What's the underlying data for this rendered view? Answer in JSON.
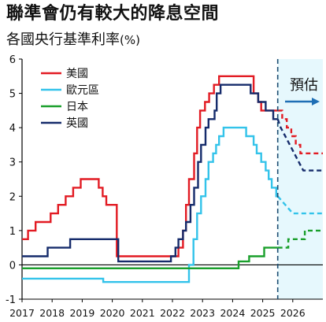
{
  "title": "聯準會仍有較大的降息空間",
  "subtitle": "各國央行基準利率",
  "subtitle_unit": "(%)",
  "forecast_label": "預估",
  "chart_data": {
    "type": "line",
    "title": "聯準會仍有較大的降息空間",
    "ylabel": "各國央行基準利率(%)",
    "xlim": [
      2017.0,
      2027.0
    ],
    "ylim": [
      -1,
      6
    ],
    "x_ticks": [
      "2017",
      "2018",
      "2019",
      "2020",
      "2021",
      "2022",
      "2023",
      "2024",
      "2025",
      "2026"
    ],
    "y_ticks": [
      "-1",
      "0",
      "1",
      "2",
      "3",
      "4",
      "5",
      "6"
    ],
    "forecast_start": 2025.5,
    "legend_position": "top-left",
    "grid": false,
    "series": [
      {
        "name": "美國",
        "color": "#e21b23",
        "points": [
          [
            2017.0,
            0.75
          ],
          [
            2017.2,
            0.75
          ],
          [
            2017.2,
            1.0
          ],
          [
            2017.45,
            1.0
          ],
          [
            2017.45,
            1.25
          ],
          [
            2017.95,
            1.25
          ],
          [
            2017.95,
            1.5
          ],
          [
            2018.2,
            1.5
          ],
          [
            2018.2,
            1.75
          ],
          [
            2018.45,
            1.75
          ],
          [
            2018.45,
            2.0
          ],
          [
            2018.7,
            2.0
          ],
          [
            2018.7,
            2.25
          ],
          [
            2018.95,
            2.25
          ],
          [
            2018.95,
            2.5
          ],
          [
            2019.55,
            2.5
          ],
          [
            2019.55,
            2.25
          ],
          [
            2019.68,
            2.25
          ],
          [
            2019.68,
            2.0
          ],
          [
            2019.8,
            2.0
          ],
          [
            2019.8,
            1.75
          ],
          [
            2020.15,
            1.75
          ],
          [
            2020.15,
            0.25
          ],
          [
            2022.2,
            0.25
          ],
          [
            2022.2,
            0.5
          ],
          [
            2022.35,
            0.5
          ],
          [
            2022.35,
            1.0
          ],
          [
            2022.45,
            1.0
          ],
          [
            2022.45,
            1.75
          ],
          [
            2022.55,
            1.75
          ],
          [
            2022.55,
            2.5
          ],
          [
            2022.72,
            2.5
          ],
          [
            2022.72,
            3.25
          ],
          [
            2022.82,
            3.25
          ],
          [
            2022.82,
            4.0
          ],
          [
            2022.92,
            4.0
          ],
          [
            2022.92,
            4.5
          ],
          [
            2023.08,
            4.5
          ],
          [
            2023.08,
            4.75
          ],
          [
            2023.22,
            4.75
          ],
          [
            2023.22,
            5.0
          ],
          [
            2023.38,
            5.0
          ],
          [
            2023.38,
            5.25
          ],
          [
            2023.55,
            5.25
          ],
          [
            2023.55,
            5.5
          ],
          [
            2024.7,
            5.5
          ],
          [
            2024.7,
            5.0
          ],
          [
            2024.85,
            5.0
          ],
          [
            2024.85,
            4.75
          ],
          [
            2024.95,
            4.75
          ],
          [
            2024.95,
            4.5
          ],
          [
            2025.5,
            4.5
          ]
        ],
        "forecast": [
          [
            2025.5,
            4.5
          ],
          [
            2025.65,
            4.5
          ],
          [
            2025.65,
            4.25
          ],
          [
            2025.8,
            4.25
          ],
          [
            2025.8,
            4.0
          ],
          [
            2025.95,
            4.0
          ],
          [
            2025.95,
            3.75
          ],
          [
            2026.1,
            3.75
          ],
          [
            2026.1,
            3.5
          ],
          [
            2026.25,
            3.5
          ],
          [
            2026.25,
            3.25
          ],
          [
            2027.0,
            3.25
          ]
        ]
      },
      {
        "name": "歐元區",
        "color": "#33c3ea",
        "points": [
          [
            2017.0,
            -0.4
          ],
          [
            2019.7,
            -0.4
          ],
          [
            2019.7,
            -0.5
          ],
          [
            2022.55,
            -0.5
          ],
          [
            2022.55,
            0.0
          ],
          [
            2022.7,
            0.0
          ],
          [
            2022.7,
            0.75
          ],
          [
            2022.82,
            0.75
          ],
          [
            2022.82,
            1.5
          ],
          [
            2022.95,
            1.5
          ],
          [
            2022.95,
            2.0
          ],
          [
            2023.1,
            2.0
          ],
          [
            2023.1,
            2.5
          ],
          [
            2023.2,
            2.5
          ],
          [
            2023.2,
            3.0
          ],
          [
            2023.35,
            3.0
          ],
          [
            2023.35,
            3.25
          ],
          [
            2023.45,
            3.25
          ],
          [
            2023.45,
            3.5
          ],
          [
            2023.55,
            3.5
          ],
          [
            2023.55,
            3.75
          ],
          [
            2023.7,
            3.75
          ],
          [
            2023.7,
            4.0
          ],
          [
            2024.45,
            4.0
          ],
          [
            2024.45,
            3.75
          ],
          [
            2024.7,
            3.75
          ],
          [
            2024.7,
            3.5
          ],
          [
            2024.8,
            3.5
          ],
          [
            2024.8,
            3.25
          ],
          [
            2024.95,
            3.25
          ],
          [
            2024.95,
            3.0
          ],
          [
            2025.1,
            3.0
          ],
          [
            2025.1,
            2.75
          ],
          [
            2025.2,
            2.75
          ],
          [
            2025.2,
            2.5
          ],
          [
            2025.3,
            2.5
          ],
          [
            2025.3,
            2.25
          ],
          [
            2025.45,
            2.25
          ],
          [
            2025.45,
            2.0
          ],
          [
            2025.5,
            2.0
          ]
        ],
        "forecast": [
          [
            2025.5,
            2.0
          ],
          [
            2025.6,
            1.9
          ],
          [
            2025.75,
            1.75
          ],
          [
            2025.9,
            1.6
          ],
          [
            2026.0,
            1.5
          ],
          [
            2027.0,
            1.5
          ]
        ]
      },
      {
        "name": "日本",
        "color": "#1a9f2c",
        "points": [
          [
            2017.0,
            -0.1
          ],
          [
            2024.2,
            -0.1
          ],
          [
            2024.2,
            0.1
          ],
          [
            2024.55,
            0.1
          ],
          [
            2024.55,
            0.25
          ],
          [
            2025.05,
            0.25
          ],
          [
            2025.05,
            0.5
          ],
          [
            2025.5,
            0.5
          ]
        ],
        "forecast": [
          [
            2025.5,
            0.5
          ],
          [
            2025.85,
            0.5
          ],
          [
            2025.85,
            0.75
          ],
          [
            2026.4,
            0.75
          ],
          [
            2026.4,
            1.0
          ],
          [
            2027.0,
            1.0
          ]
        ]
      },
      {
        "name": "英國",
        "color": "#152b6b",
        "points": [
          [
            2017.0,
            0.25
          ],
          [
            2017.85,
            0.25
          ],
          [
            2017.85,
            0.5
          ],
          [
            2018.6,
            0.5
          ],
          [
            2018.6,
            0.75
          ],
          [
            2020.2,
            0.75
          ],
          [
            2020.2,
            0.1
          ],
          [
            2021.95,
            0.1
          ],
          [
            2021.95,
            0.25
          ],
          [
            2022.1,
            0.25
          ],
          [
            2022.1,
            0.5
          ],
          [
            2022.2,
            0.5
          ],
          [
            2022.2,
            0.75
          ],
          [
            2022.35,
            0.75
          ],
          [
            2022.35,
            1.0
          ],
          [
            2022.45,
            1.0
          ],
          [
            2022.45,
            1.25
          ],
          [
            2022.6,
            1.25
          ],
          [
            2022.6,
            1.75
          ],
          [
            2022.72,
            1.75
          ],
          [
            2022.72,
            2.25
          ],
          [
            2022.85,
            2.25
          ],
          [
            2022.85,
            3.0
          ],
          [
            2022.95,
            3.0
          ],
          [
            2022.95,
            3.5
          ],
          [
            2023.1,
            3.5
          ],
          [
            2023.1,
            4.0
          ],
          [
            2023.2,
            4.0
          ],
          [
            2023.2,
            4.25
          ],
          [
            2023.4,
            4.25
          ],
          [
            2023.4,
            4.5
          ],
          [
            2023.47,
            4.5
          ],
          [
            2023.47,
            5.0
          ],
          [
            2023.6,
            5.0
          ],
          [
            2023.6,
            5.25
          ],
          [
            2024.6,
            5.25
          ],
          [
            2024.6,
            5.0
          ],
          [
            2024.85,
            5.0
          ],
          [
            2024.85,
            4.75
          ],
          [
            2025.1,
            4.75
          ],
          [
            2025.1,
            4.5
          ],
          [
            2025.35,
            4.5
          ],
          [
            2025.35,
            4.25
          ],
          [
            2025.5,
            4.25
          ]
        ],
        "forecast": [
          [
            2025.5,
            4.25
          ],
          [
            2025.6,
            4.0
          ],
          [
            2025.75,
            3.75
          ],
          [
            2025.9,
            3.5
          ],
          [
            2026.05,
            3.25
          ],
          [
            2026.2,
            3.0
          ],
          [
            2026.35,
            2.75
          ],
          [
            2027.0,
            2.75
          ]
        ]
      }
    ]
  }
}
